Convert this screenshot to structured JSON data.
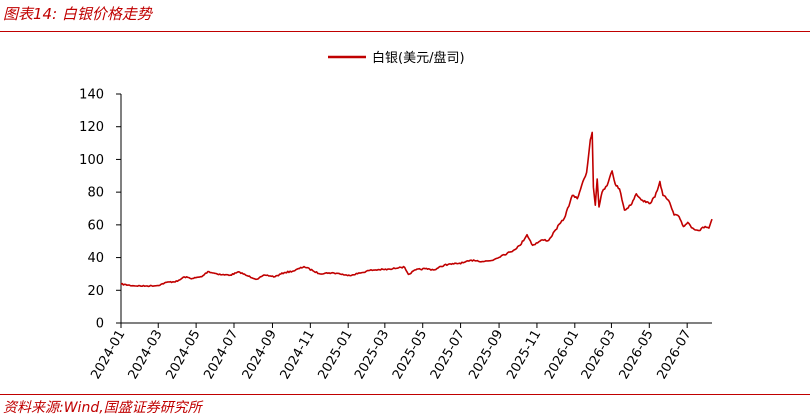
{
  "figure": {
    "title": "图表14:  白银价格走势",
    "source": "资料来源:Wind,国盛证券研究所"
  },
  "colors": {
    "accent": "#c00000",
    "series": "#c00000",
    "axis": "#000000"
  },
  "chart_data": {
    "type": "line",
    "legend_placement": "top-center",
    "grid": false,
    "ylim": [
      0,
      140
    ],
    "yticks": [
      "0",
      "20",
      "40",
      "60",
      "80",
      "100",
      "120",
      "140"
    ],
    "xticks": [
      "2024-01",
      "2024-03",
      "2024-05",
      "2024-07",
      "2024-09",
      "2024-11",
      "2025-01",
      "2025-03",
      "2025-05",
      "2025-07",
      "2025-09",
      "2025-11",
      "2026-01",
      "2026-03",
      "2026-05",
      "2026-07"
    ],
    "xlim": [
      "2024-01-01",
      "2026-08-10"
    ],
    "series": [
      {
        "name": "白银(美元/盘司)",
        "points": [
          [
            "2024-01-01",
            23.8
          ],
          [
            "2024-01-20",
            22.8
          ],
          [
            "2024-02-10",
            22.6
          ],
          [
            "2024-02-29",
            22.9
          ],
          [
            "2024-03-15",
            24.9
          ],
          [
            "2024-04-01",
            25.5
          ],
          [
            "2024-04-12",
            28.2
          ],
          [
            "2024-04-25",
            27.2
          ],
          [
            "2024-05-10",
            28.3
          ],
          [
            "2024-05-20",
            31.5
          ],
          [
            "2024-05-31",
            30.4
          ],
          [
            "2024-06-12",
            29.5
          ],
          [
            "2024-06-25",
            29.3
          ],
          [
            "2024-07-10",
            31.2
          ],
          [
            "2024-07-20",
            29.2
          ],
          [
            "2024-08-07",
            26.8
          ],
          [
            "2024-08-20",
            29.3
          ],
          [
            "2024-09-05",
            28.3
          ],
          [
            "2024-09-20",
            30.8
          ],
          [
            "2024-10-05",
            31.8
          ],
          [
            "2024-10-22",
            34.5
          ],
          [
            "2024-11-05",
            32.0
          ],
          [
            "2024-11-15",
            30.2
          ],
          [
            "2024-12-01",
            30.6
          ],
          [
            "2024-12-15",
            30.4
          ],
          [
            "2024-12-31",
            29.0
          ],
          [
            "2025-01-20",
            30.5
          ],
          [
            "2025-02-05",
            32.2
          ],
          [
            "2025-02-20",
            32.6
          ],
          [
            "2025-03-10",
            32.8
          ],
          [
            "2025-03-25",
            34.2
          ],
          [
            "2025-04-02",
            34.0
          ],
          [
            "2025-04-08",
            29.7
          ],
          [
            "2025-04-20",
            32.5
          ],
          [
            "2025-05-05",
            33.2
          ],
          [
            "2025-05-20",
            32.5
          ],
          [
            "2025-06-05",
            35.5
          ],
          [
            "2025-06-20",
            36.1
          ],
          [
            "2025-07-05",
            36.8
          ],
          [
            "2025-07-22",
            38.5
          ],
          [
            "2025-08-05",
            37.6
          ],
          [
            "2025-08-20",
            38.2
          ],
          [
            "2025-09-05",
            41.2
          ],
          [
            "2025-09-20",
            43.5
          ],
          [
            "2025-10-05",
            47.5
          ],
          [
            "2025-10-16",
            54.0
          ],
          [
            "2025-10-25",
            47.5
          ],
          [
            "2025-11-10",
            50.8
          ],
          [
            "2025-11-20",
            50.5
          ],
          [
            "2025-12-01",
            57.0
          ],
          [
            "2025-12-15",
            64.0
          ],
          [
            "2025-12-28",
            78.0
          ],
          [
            "2026-01-05",
            76.0
          ],
          [
            "2026-01-12",
            84.0
          ],
          [
            "2026-01-20",
            92.0
          ],
          [
            "2026-01-26",
            112.0
          ],
          [
            "2026-01-29",
            116.5
          ],
          [
            "2026-01-31",
            83.0
          ],
          [
            "2026-02-03",
            72.0
          ],
          [
            "2026-02-06",
            88.0
          ],
          [
            "2026-02-09",
            71.0
          ],
          [
            "2026-02-14",
            80.0
          ],
          [
            "2026-02-22",
            84.0
          ],
          [
            "2026-03-02",
            93.0
          ],
          [
            "2026-03-07",
            85.0
          ],
          [
            "2026-03-14",
            82.0
          ],
          [
            "2026-03-22",
            69.0
          ],
          [
            "2026-04-01",
            72.0
          ],
          [
            "2026-04-10",
            79.0
          ],
          [
            "2026-04-20",
            75.0
          ],
          [
            "2026-05-01",
            73.0
          ],
          [
            "2026-05-10",
            77.0
          ],
          [
            "2026-05-18",
            86.5
          ],
          [
            "2026-05-23",
            78.0
          ],
          [
            "2026-06-01",
            75.0
          ],
          [
            "2026-06-10",
            66.0
          ],
          [
            "2026-06-18",
            65.0
          ],
          [
            "2026-06-25",
            59.0
          ],
          [
            "2026-07-02",
            61.5
          ],
          [
            "2026-07-10",
            58.0
          ],
          [
            "2026-07-20",
            56.5
          ],
          [
            "2026-07-30",
            59.0
          ],
          [
            "2026-08-05",
            58.0
          ],
          [
            "2026-08-10",
            63.5
          ]
        ]
      }
    ]
  }
}
